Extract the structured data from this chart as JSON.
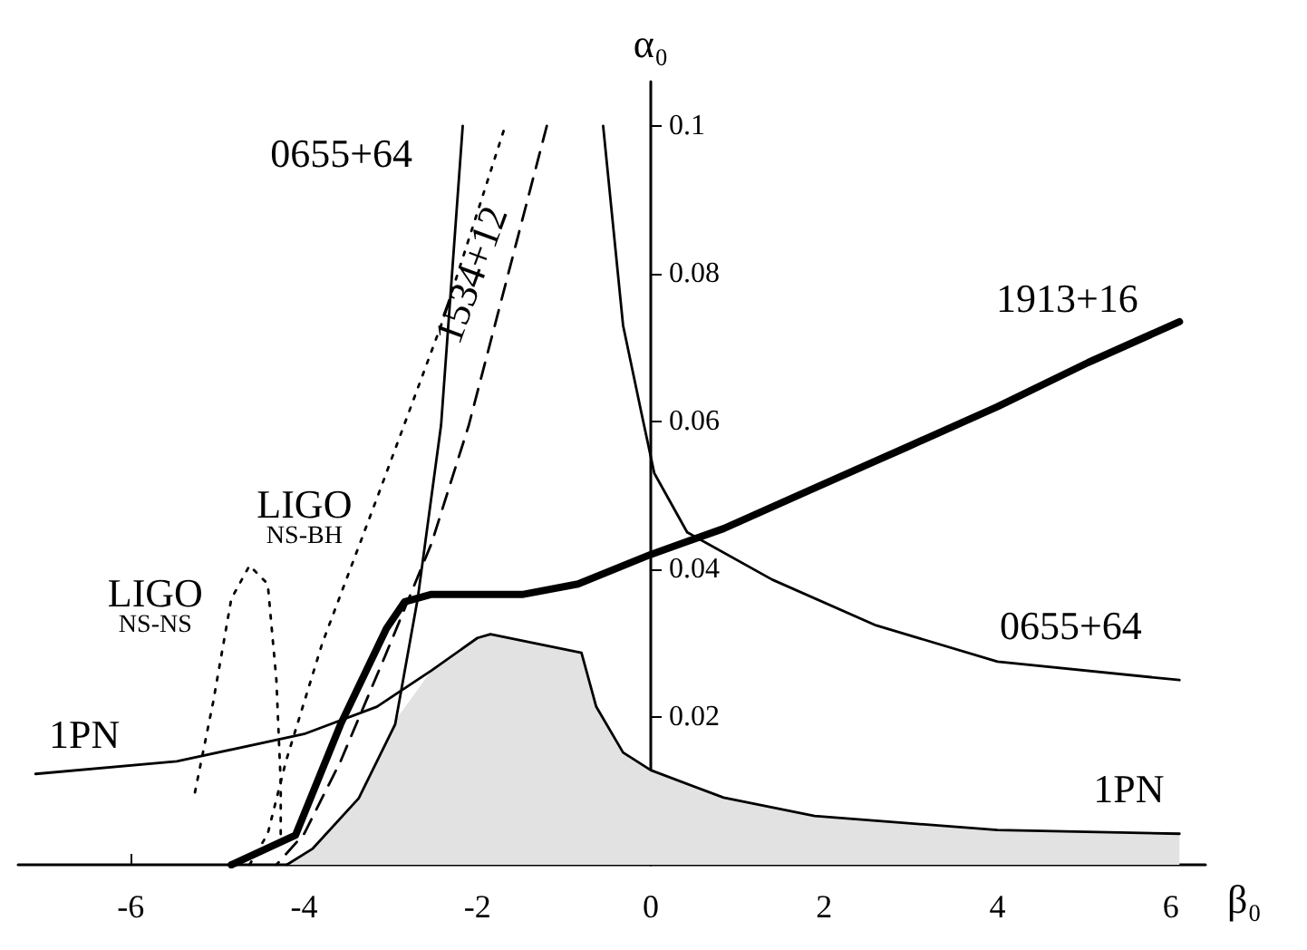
{
  "chart_data": {
    "type": "line",
    "xlabel": "β₀",
    "ylabel": "α₀",
    "xlim": [
      -7.3,
      6.4
    ],
    "ylim": [
      0,
      0.106
    ],
    "xticks": [
      -6,
      -4,
      -2,
      0,
      2,
      4,
      6
    ],
    "yticks": [
      0.02,
      0.04,
      0.06,
      0.08,
      0.1
    ],
    "grid": false,
    "legend": false,
    "marker": "none",
    "series": [
      {
        "type": "area",
        "color": "#e2e2e2",
        "x": [
          -4.2,
          -3.9,
          -3.37,
          -2.95,
          -2.53,
          -2,
          -1.85,
          -0.8,
          -0.63,
          -0.32,
          0,
          0.84,
          1.89,
          4,
          6.1
        ],
        "values": [
          0,
          0.0022,
          0.009,
          0.0195,
          0.0263,
          0.0307,
          0.0312,
          0.0287,
          0.0214,
          0.0152,
          0.0128,
          0.0091,
          0.0066,
          0.0047,
          0.0042
        ]
      },
      {
        "name": "1913+16",
        "color": "#000000",
        "line_style": "solid",
        "x": [
          -4.84,
          -4.1,
          -3.58,
          -3.05,
          -2.84,
          -2.53,
          -1.47,
          -0.84,
          0,
          0.84,
          1.89,
          2.95,
          4,
          5.05,
          6.1
        ],
        "values": [
          0,
          0.004,
          0.019,
          0.032,
          0.0356,
          0.0366,
          0.0366,
          0.038,
          0.042,
          0.0455,
          0.051,
          0.0565,
          0.062,
          0.068,
          0.0735
        ]
      },
      {
        "name": "0655+64",
        "color": "#000000",
        "line_style": "solid",
        "x": [
          -2.17,
          -2.42,
          -2.69,
          -2.95,
          -3.37,
          -3.9,
          -4.2,
          null,
          -0.55,
          -0.32,
          -0.1,
          0.04,
          0.42,
          1.4,
          2.6,
          4,
          6.1
        ],
        "values": [
          0.1,
          0.0595,
          0.036,
          0.019,
          0.009,
          0.0022,
          0,
          null,
          0.1,
          0.073,
          0.0607,
          0.053,
          0.045,
          0.0386,
          0.0324,
          0.0275,
          0.025
        ]
      },
      {
        "name": "1534+12",
        "color": "#000000",
        "line_style": "dashed",
        "x": [
          -1.2,
          -2.1,
          -2.53,
          -3.05,
          -3.58,
          -4,
          -4.32
        ],
        "values": [
          0.1,
          0.0595,
          0.0435,
          0.0287,
          0.014,
          0.0042,
          0
        ]
      },
      {
        "name": "LIGO\nNS-BH",
        "color": "#000000",
        "line_style": "dotted",
        "x": [
          -4.63,
          -4.42,
          -4.21,
          -3.79,
          -3.16,
          -2.42,
          -1.68
        ],
        "values": [
          0,
          0.0042,
          0.014,
          0.03,
          0.0496,
          0.073,
          0.1
        ]
      },
      {
        "name": "LIGO\nNS-NS",
        "color": "#000000",
        "line_style": "dotted",
        "x": [
          -5.26,
          -5.05,
          -4.84,
          -4.63,
          -4.42,
          -4.32,
          -4.27,
          -4.27
        ],
        "values": [
          0.0098,
          0.022,
          0.036,
          0.0405,
          0.038,
          0.025,
          0.011,
          0.004
        ]
      },
      {
        "name": "1PN",
        "color": "#000000",
        "line_style": "solid",
        "x": [
          -7.1,
          -5.47,
          -4,
          -3.16,
          -2.53,
          -2,
          -1.85,
          -0.8,
          -0.63,
          -0.32,
          0,
          0.84,
          1.89,
          4,
          6.1
        ],
        "values": [
          0.0123,
          0.014,
          0.0177,
          0.0214,
          0.0263,
          0.0307,
          0.0312,
          0.0287,
          0.0214,
          0.0152,
          0.0128,
          0.0091,
          0.0066,
          0.0047,
          0.0042
        ]
      }
    ]
  }
}
